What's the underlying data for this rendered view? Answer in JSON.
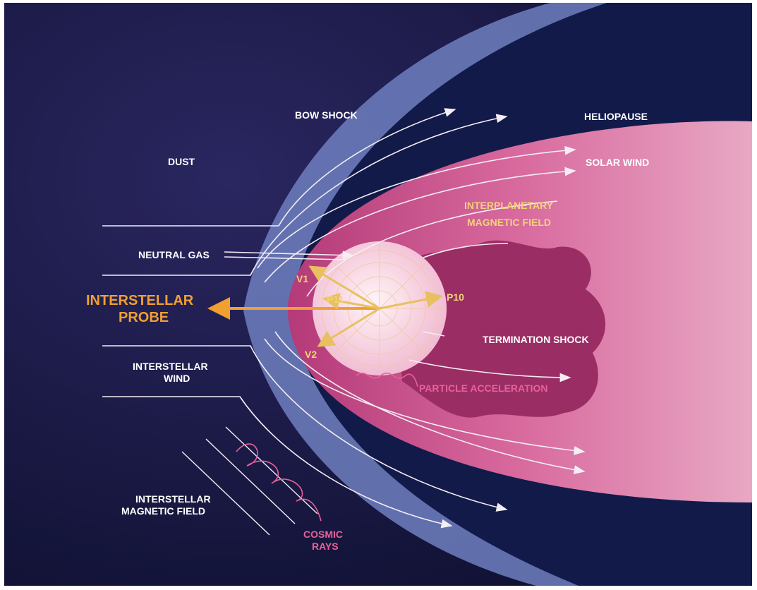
{
  "labels": {
    "bow_shock": "BOW SHOCK",
    "heliopause": "HELIOPAUSE",
    "dust": "DUST",
    "solar_wind": "SOLAR WIND",
    "interplanetary_magnetic_field": [
      "INTERPLANETARY",
      "MAGNETIC FIELD"
    ],
    "neutral_gas": "NEUTRAL GAS",
    "v1": "V1",
    "p11": "P11",
    "p10": "P10",
    "v2": "V2",
    "interstellar_probe": [
      "INTERSTELLAR",
      "PROBE"
    ],
    "termination_shock": "TERMINATION SHOCK",
    "interstellar_wind": [
      "INTERSTELLAR",
      "WIND"
    ],
    "particle_acceleration": "PARTICLE ACCELERATION",
    "interstellar_magnetic_field": [
      "INTERSTELLAR",
      "MAGNETIC FIELD"
    ],
    "cosmic_rays": [
      "COSMIC",
      "RAYS"
    ]
  }
}
